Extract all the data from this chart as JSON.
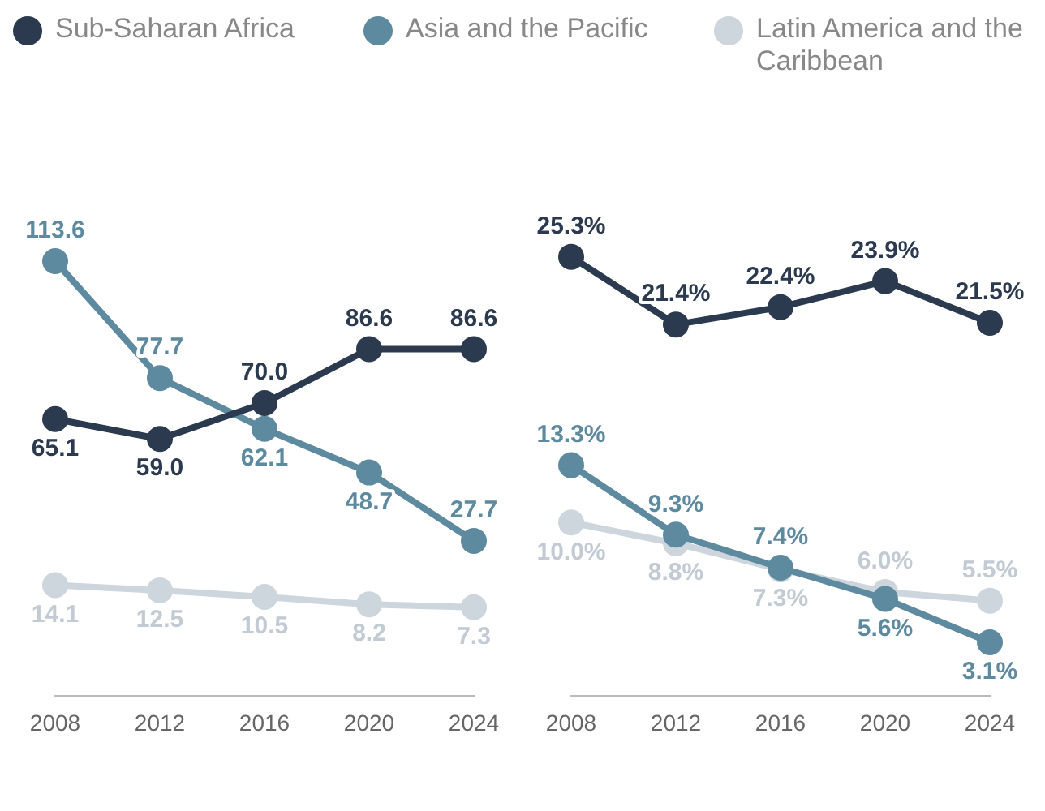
{
  "chart_data": [
    {
      "type": "line",
      "legend": "top",
      "marker": "circle",
      "categories": [
        "2008",
        "2012",
        "2016",
        "2020",
        "2024"
      ],
      "series": [
        {
          "name": "Sub-Saharan Africa",
          "color": "#2b3a4e",
          "values": [
            65.1,
            59.0,
            70.0,
            86.6,
            86.6
          ],
          "value_labels": [
            "65.1",
            "59.0",
            "70.0",
            "86.6",
            "86.6"
          ]
        },
        {
          "name": "Asia and the Pacific",
          "color": "#5e8aa0",
          "values": [
            113.6,
            77.7,
            62.1,
            48.7,
            27.7
          ],
          "value_labels": [
            "113.6",
            "77.7",
            "62.1",
            "48.7",
            "27.7"
          ]
        },
        {
          "name": "Latin America and the Caribbean",
          "color": "#cdd5dd",
          "values": [
            14.1,
            12.5,
            10.5,
            8.2,
            7.3
          ],
          "value_labels": [
            "14.1",
            "12.5",
            "10.5",
            "8.2",
            "7.3"
          ]
        }
      ]
    },
    {
      "type": "line",
      "marker": "circle",
      "categories": [
        "2008",
        "2012",
        "2016",
        "2020",
        "2024"
      ],
      "series": [
        {
          "color": "#2b3a4e",
          "values": [
            25.3,
            21.4,
            22.4,
            23.9,
            21.5
          ],
          "value_labels": [
            "25.3%",
            "21.4%",
            "22.4%",
            "23.9%",
            "21.5%"
          ]
        },
        {
          "color": "#5e8aa0",
          "values": [
            13.3,
            9.3,
            7.4,
            5.6,
            3.1
          ],
          "value_labels": [
            "13.3%",
            "9.3%",
            "7.4%",
            "5.6%",
            "3.1%"
          ]
        },
        {
          "color": "#cdd5dd",
          "values": [
            10.0,
            8.8,
            7.3,
            6.0,
            5.5
          ],
          "value_labels": [
            "10.0%",
            "8.8%",
            "7.3%",
            "6.0%",
            "5.5%"
          ]
        }
      ]
    }
  ]
}
